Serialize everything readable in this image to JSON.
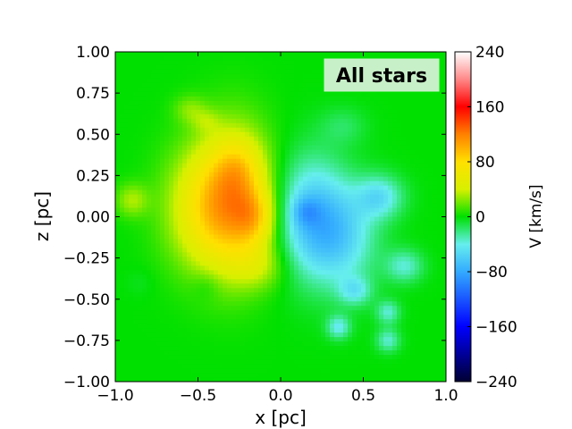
{
  "chart_data": {
    "type": "heatmap",
    "title": "",
    "annotation": "All stars",
    "annotation_placement": "top-right",
    "xlabel": "x [pc]",
    "ylabel": "z [pc]",
    "xlim": [
      -1.0,
      1.0
    ],
    "ylim": [
      -1.0,
      1.0
    ],
    "x_ticks": [
      -1.0,
      -0.5,
      0.0,
      0.5,
      1.0
    ],
    "x_tick_labels": [
      "−1.0",
      "−0.5",
      "0.0",
      "0.5",
      "1.0"
    ],
    "y_ticks": [
      1.0,
      0.75,
      0.5,
      0.25,
      0.0,
      -0.25,
      -0.5,
      -0.75,
      -1.0
    ],
    "y_tick_labels": [
      "1.00",
      "0.75",
      "0.50",
      "0.25",
      "0.00",
      "−0.25",
      "−0.50",
      "−0.75",
      "−1.00"
    ],
    "colorbar": {
      "label": "V [km/s]",
      "range": [
        -240,
        240
      ],
      "ticks": [
        240,
        160,
        80,
        0,
        -80,
        -160,
        -240
      ],
      "tick_labels": [
        "240",
        "160",
        "80",
        "0",
        "−80",
        "−160",
        "−240"
      ],
      "colormap": [
        {
          "v": -240,
          "color": "#000033"
        },
        {
          "v": -160,
          "color": "#0000ff"
        },
        {
          "v": -80,
          "color": "#33aaff"
        },
        {
          "v": -40,
          "color": "#66eeee"
        },
        {
          "v": 0,
          "color": "#00e000"
        },
        {
          "v": 40,
          "color": "#d8f000"
        },
        {
          "v": 80,
          "color": "#ffe000"
        },
        {
          "v": 120,
          "color": "#ff8000"
        },
        {
          "v": 160,
          "color": "#ff0000"
        },
        {
          "v": 200,
          "color": "#ff8888"
        },
        {
          "v": 240,
          "color": "#ffffff"
        }
      ]
    },
    "background_value": 0,
    "velocity_blobs": [
      {
        "x": -0.9,
        "z": 0.1,
        "sx": 0.07,
        "sz": 0.07,
        "v": 30
      },
      {
        "x": -0.55,
        "z": 0.65,
        "sx": 0.07,
        "sz": 0.06,
        "v": 20
      },
      {
        "x": -0.45,
        "z": 0.58,
        "sx": 0.06,
        "sz": 0.05,
        "v": 15
      },
      {
        "x": -0.45,
        "z": 0.05,
        "sx": 0.18,
        "sz": 0.26,
        "v": 55
      },
      {
        "x": -0.28,
        "z": 0.1,
        "sx": 0.16,
        "sz": 0.3,
        "v": 75
      },
      {
        "x": -0.15,
        "z": 0.0,
        "sx": 0.09,
        "sz": 0.12,
        "v": 45
      },
      {
        "x": -0.25,
        "z": 0.3,
        "sx": 0.1,
        "sz": 0.12,
        "v": 25
      },
      {
        "x": -0.12,
        "z": -0.3,
        "sx": 0.12,
        "sz": 0.1,
        "v": 25
      },
      {
        "x": -0.45,
        "z": -0.42,
        "sx": 0.06,
        "sz": 0.06,
        "v": -10
      },
      {
        "x": -0.85,
        "z": -0.4,
        "sx": 0.06,
        "sz": 0.06,
        "v": -5
      },
      {
        "x": 0.18,
        "z": 0.0,
        "sx": 0.15,
        "sz": 0.25,
        "v": -60
      },
      {
        "x": 0.15,
        "z": 0.03,
        "sx": 0.06,
        "sz": 0.06,
        "v": -25
      },
      {
        "x": 0.38,
        "z": -0.12,
        "sx": 0.15,
        "sz": 0.22,
        "v": -45
      },
      {
        "x": 0.6,
        "z": 0.12,
        "sx": 0.1,
        "sz": 0.09,
        "v": -45
      },
      {
        "x": 0.75,
        "z": -0.3,
        "sx": 0.08,
        "sz": 0.07,
        "v": -35
      },
      {
        "x": 0.45,
        "z": -0.45,
        "sx": 0.07,
        "sz": 0.06,
        "v": -35
      },
      {
        "x": 0.38,
        "z": 0.55,
        "sx": 0.1,
        "sz": 0.08,
        "v": -15
      },
      {
        "x": 0.35,
        "z": -0.67,
        "sx": 0.05,
        "sz": 0.05,
        "v": -40
      },
      {
        "x": 0.65,
        "z": -0.58,
        "sx": 0.05,
        "sz": 0.05,
        "v": -35
      },
      {
        "x": 0.65,
        "z": -0.75,
        "sx": 0.05,
        "sz": 0.05,
        "v": -35
      }
    ]
  }
}
